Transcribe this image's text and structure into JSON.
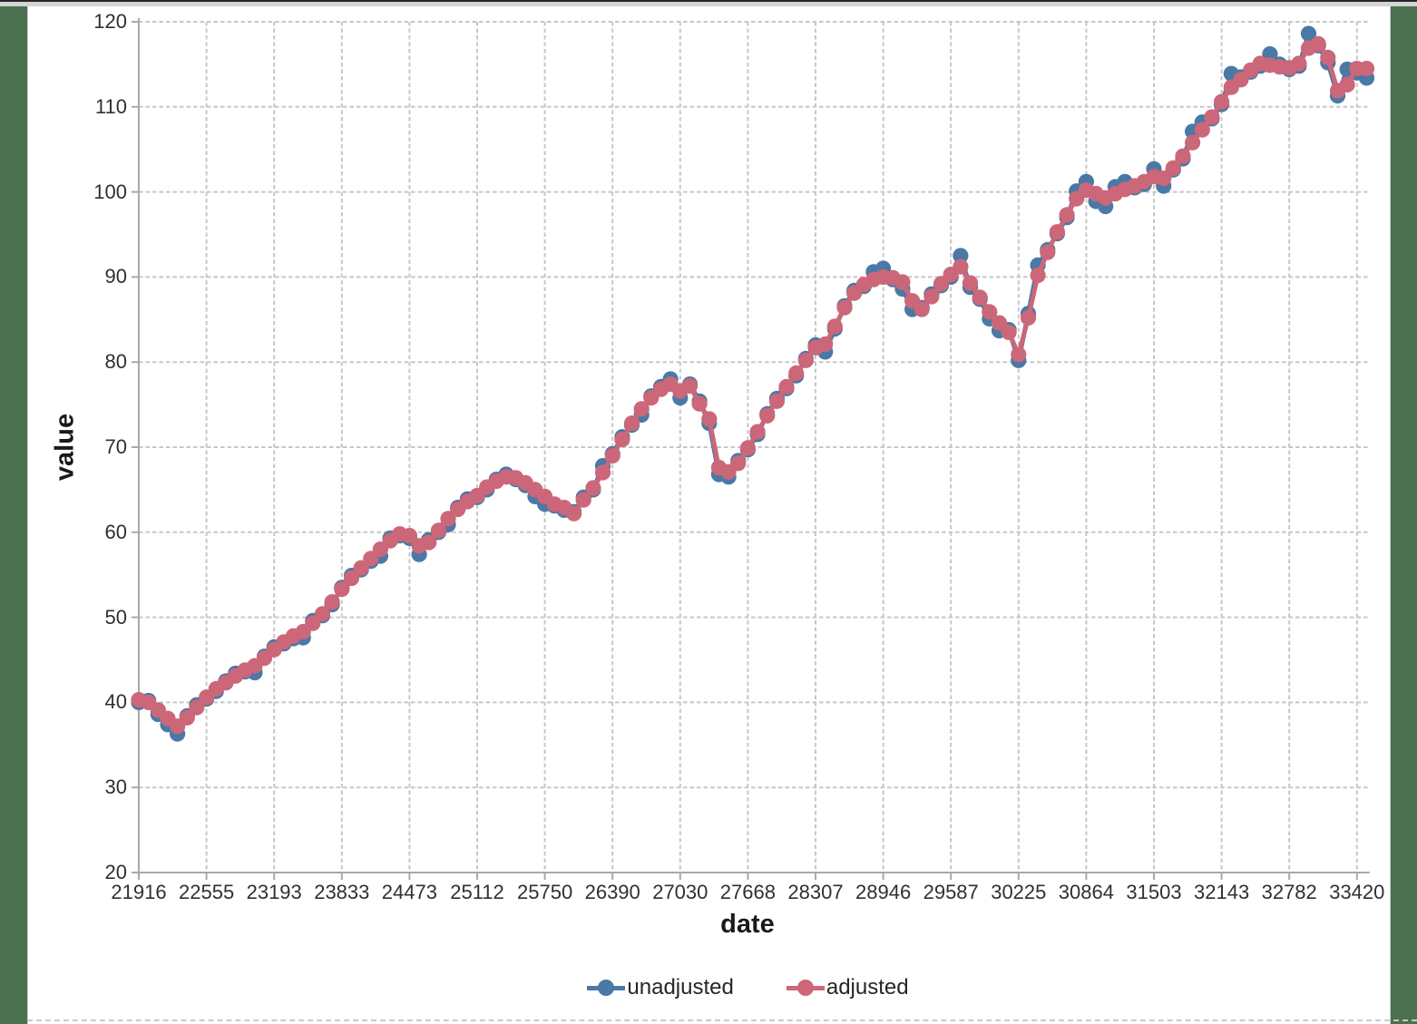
{
  "page": {
    "colors": {
      "frame": "#4b7150",
      "topbar": "#262626",
      "topstrip": "#d4d4d4",
      "background": "#ffffff",
      "gridline": "#c7c7c7",
      "axis": "#a9a9a9",
      "tick_text": "#303030"
    }
  },
  "chart_data": {
    "type": "line",
    "title": "",
    "xlabel": "date",
    "ylabel": "value",
    "ylim": [
      20,
      120
    ],
    "ytick_step": 10,
    "grid": true,
    "legend_position": "bottom",
    "y_tick_labels": [
      "20",
      "30",
      "40",
      "50",
      "60",
      "70",
      "80",
      "90",
      "100",
      "110",
      "120"
    ],
    "x_tick_labels": [
      "21916",
      "22555",
      "23193",
      "23833",
      "24473",
      "25112",
      "25750",
      "26390",
      "27030",
      "27668",
      "28307",
      "28946",
      "29587",
      "30225",
      "30864",
      "31503",
      "32143",
      "32782",
      "33420"
    ],
    "x_tick_every": 7,
    "marker": "circle",
    "series": [
      {
        "name": "unadjusted",
        "color": "#4a79a5",
        "values": [
          40.0,
          40.2,
          38.6,
          37.4,
          36.3,
          38.4,
          39.7,
          40.4,
          41.3,
          42.5,
          43.4,
          43.6,
          43.5,
          45.4,
          46.5,
          46.9,
          47.5,
          47.6,
          49.6,
          50.2,
          51.5,
          53.5,
          54.9,
          55.6,
          56.6,
          57.2,
          59.3,
          59.6,
          59.3,
          57.4,
          59.1,
          60.0,
          60.9,
          62.9,
          63.9,
          64.1,
          65.0,
          66.2,
          66.8,
          66.2,
          65.5,
          64.2,
          63.3,
          63.1,
          62.6,
          62.4,
          64.1,
          65.0,
          67.8,
          69.2,
          71.2,
          72.6,
          73.8,
          76.0,
          77.1,
          78.0,
          75.8,
          77.4,
          75.4,
          72.8,
          66.8,
          66.5,
          68.4,
          69.7,
          71.5,
          73.9,
          75.7,
          76.9,
          78.4,
          80.4,
          82.0,
          81.2,
          83.9,
          86.6,
          88.4,
          88.9,
          90.6,
          91.0,
          89.7,
          88.6,
          86.2,
          86.4,
          88.0,
          89.0,
          90.0,
          92.5,
          88.8,
          87.4,
          85.1,
          83.7,
          83.8,
          80.2,
          85.7,
          91.4,
          93.2,
          95.1,
          97.0,
          100.1,
          101.2,
          98.9,
          98.3,
          100.6,
          101.2,
          100.5,
          100.9,
          102.7,
          100.7,
          102.6,
          103.9,
          107.1,
          108.2,
          108.6,
          110.3,
          113.9,
          113.5,
          114.1,
          114.8,
          116.2,
          115.0,
          114.4,
          114.8,
          118.6,
          117.2,
          115.2,
          111.3,
          114.4,
          114.0,
          113.4
        ]
      },
      {
        "name": "adjusted",
        "color": "#cb6779",
        "values": [
          40.3,
          40.0,
          39.1,
          38.1,
          37.2,
          38.2,
          39.4,
          40.6,
          41.6,
          42.3,
          43.1,
          43.8,
          44.3,
          45.2,
          46.2,
          47.1,
          47.8,
          48.3,
          49.3,
          50.4,
          51.8,
          53.3,
          54.6,
          55.8,
          56.9,
          58.0,
          59.0,
          59.8,
          59.6,
          58.4,
          58.8,
          60.2,
          61.6,
          62.7,
          63.6,
          64.3,
          65.3,
          66.0,
          66.5,
          66.4,
          65.8,
          65.0,
          64.2,
          63.3,
          62.9,
          62.2,
          63.8,
          65.2,
          67.0,
          69.0,
          70.9,
          72.8,
          74.5,
          75.8,
          76.8,
          77.4,
          76.6,
          77.2,
          75.1,
          73.3,
          67.6,
          67.1,
          68.1,
          69.9,
          71.8,
          73.7,
          75.4,
          77.1,
          78.7,
          80.2,
          81.7,
          82.1,
          84.2,
          86.4,
          88.1,
          89.1,
          89.7,
          90.0,
          89.9,
          89.4,
          87.2,
          86.2,
          87.7,
          89.2,
          90.3,
          91.2,
          89.3,
          87.6,
          85.9,
          84.6,
          83.5,
          80.9,
          85.2,
          90.2,
          92.9,
          95.3,
          97.3,
          99.2,
          100.2,
          99.8,
          99.3,
          99.8,
          100.3,
          100.7,
          101.2,
          101.8,
          101.6,
          102.8,
          104.2,
          105.8,
          107.3,
          108.8,
          110.6,
          112.3,
          113.2,
          114.3,
          115.1,
          114.9,
          114.7,
          114.6,
          115.1,
          116.9,
          117.4,
          115.8,
          111.9,
          112.6,
          114.5,
          114.5
        ]
      }
    ]
  }
}
